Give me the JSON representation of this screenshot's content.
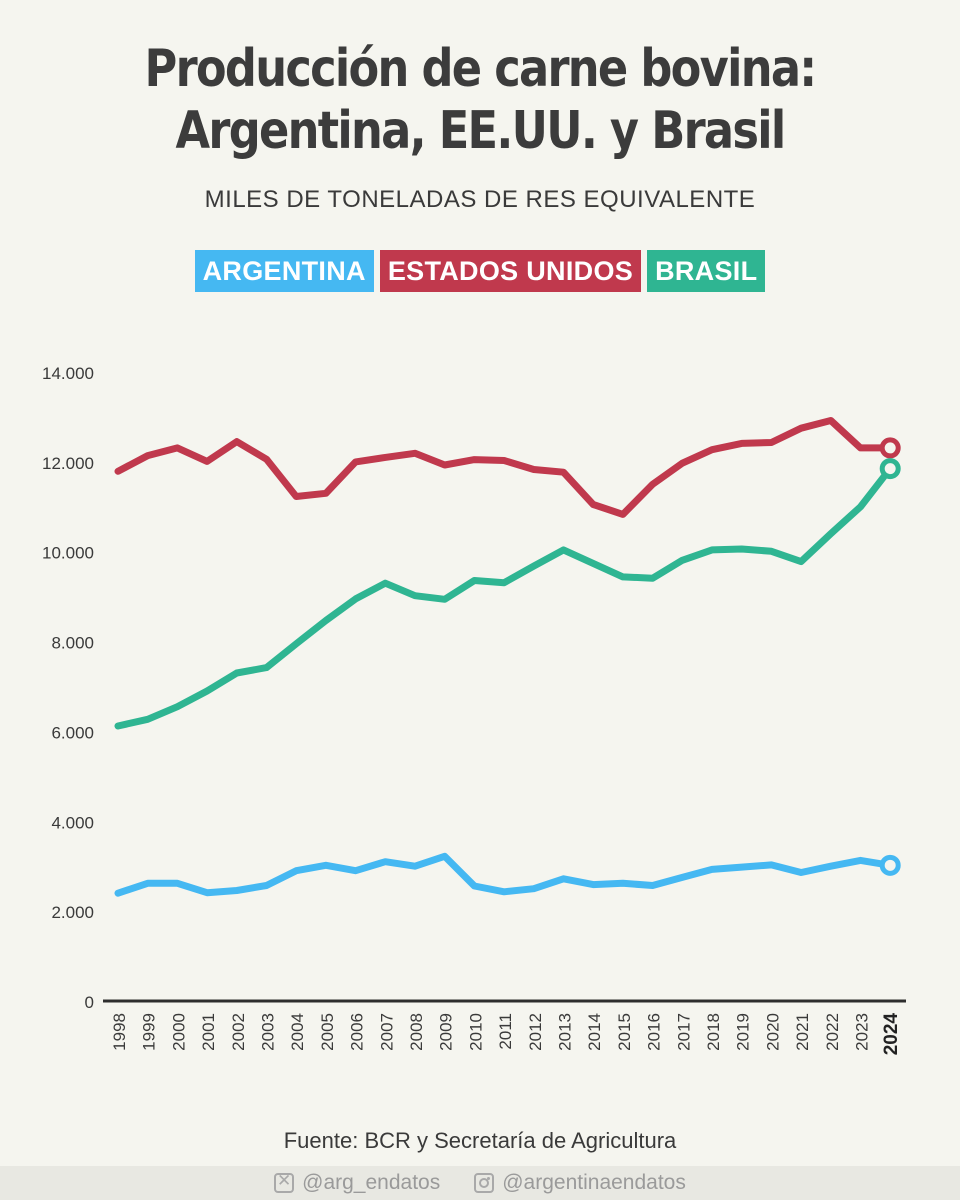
{
  "title_line1": "Producción de carne bovina:",
  "title_line2": "Argentina, EE.UU. y Brasil",
  "subtitle": "MILES DE TONELADAS DE RES EQUIVALENTE",
  "legend": [
    {
      "label": "ARGENTINA",
      "color": "#45b8f2"
    },
    {
      "label": "ESTADOS UNIDOS",
      "color": "#c0394d"
    },
    {
      "label": "BRASIL",
      "color": "#2fb592"
    }
  ],
  "chart_data": {
    "type": "line",
    "title": "Producción de carne bovina: Argentina, EE.UU. y Brasil",
    "ylabel": "MILES DE TONELADAS DE RES EQUIVALENTE",
    "xlabel": "",
    "ylim": [
      0,
      14000
    ],
    "yticks": [
      0,
      2000,
      4000,
      6000,
      8000,
      10000,
      12000,
      14000
    ],
    "ytick_labels": [
      "0",
      "2.000",
      "4.000",
      "6.000",
      "8.000",
      "10.000",
      "12.000",
      "14.000"
    ],
    "grid": false,
    "categories": [
      "1998",
      "1999",
      "2000",
      "2001",
      "2002",
      "2003",
      "2004",
      "2005",
      "2006",
      "2007",
      "2008",
      "2009",
      "2010",
      "2011",
      "2012",
      "2013",
      "2014",
      "2015",
      "2016",
      "2017",
      "2018",
      "2019",
      "2020",
      "2021",
      "2022",
      "2023",
      "2024"
    ],
    "highlight_category": "2024",
    "series": [
      {
        "name": "Argentina",
        "color": "#45b8f2",
        "values": [
          2400,
          2620,
          2620,
          2410,
          2460,
          2570,
          2900,
          3020,
          2900,
          3100,
          3000,
          3220,
          2560,
          2430,
          2500,
          2720,
          2590,
          2620,
          2570,
          2750,
          2930,
          2980,
          3030,
          2860,
          3000,
          3130,
          3020
        ]
      },
      {
        "name": "Estados Unidos",
        "color": "#c0394d",
        "values": [
          11790,
          12140,
          12310,
          12010,
          12450,
          12060,
          11230,
          11300,
          12000,
          12100,
          12190,
          11930,
          12050,
          12030,
          11830,
          11770,
          11050,
          10830,
          11500,
          11970,
          12270,
          12410,
          12430,
          12750,
          12920,
          12310,
          12310
        ]
      },
      {
        "name": "Brasil",
        "color": "#2fb592",
        "values": [
          6120,
          6270,
          6550,
          6900,
          7300,
          7420,
          7950,
          8470,
          8950,
          9300,
          9020,
          8940,
          9360,
          9310,
          9680,
          10040,
          9740,
          9440,
          9410,
          9810,
          10040,
          10060,
          10010,
          9780,
          10400,
          11000,
          11850
        ]
      }
    ]
  },
  "source": "Fuente: BCR y Secretaría de Agricultura",
  "footer": {
    "x_handle": "@arg_endatos",
    "x_icon": "x-logo-icon",
    "ig_handle": "@argentinaendatos",
    "ig_icon": "instagram-icon"
  }
}
